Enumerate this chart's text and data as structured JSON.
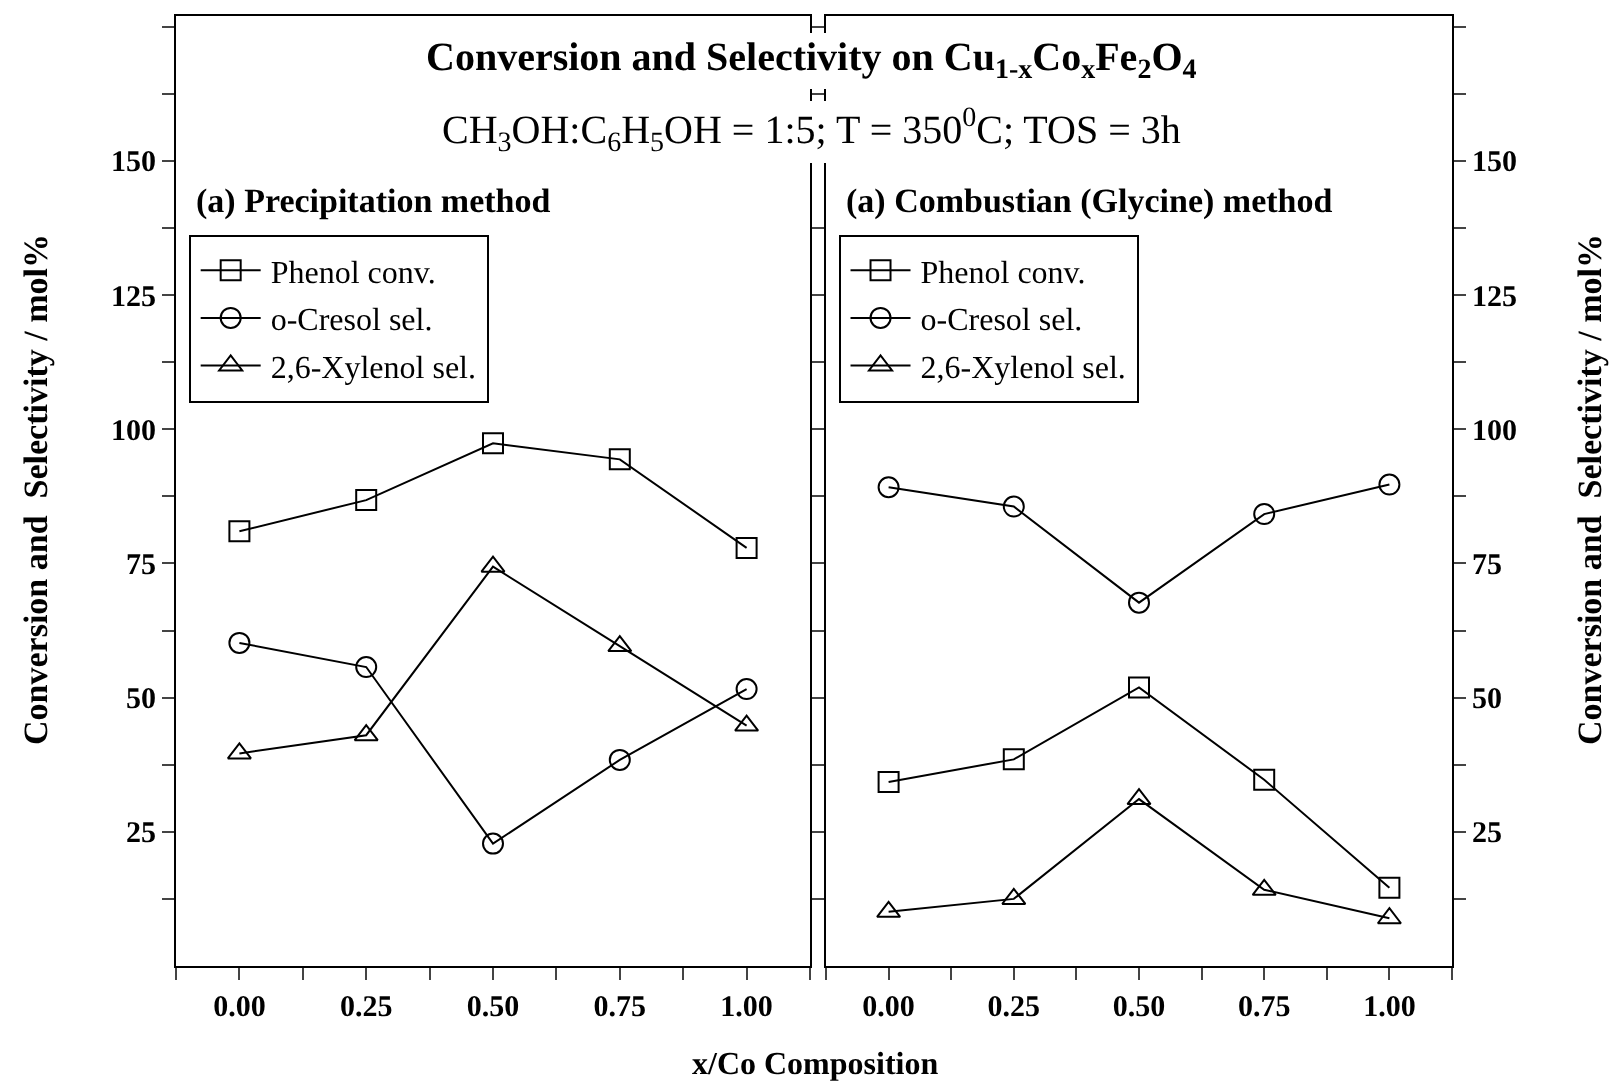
{
  "chart_data": [
    {
      "type": "line",
      "title": "Conversion and Selectivity on Cu$_{1-x}$Co$_{x}$Fe$_{2}$O$_{4}$",
      "subtitle": "CH$_{3}$OH:C$_{6}$H$_{5}$OH = 1:5; T = 350$^{0}$C; TOS = 3h",
      "xlabel": "x/Co Composition",
      "ylabel": "Conversion and  Selectivity / mol%",
      "annotations": [
        "(a) Precipitation method"
      ],
      "x": [
        0,
        0.25,
        0.5,
        0.75,
        1.0
      ],
      "xlim": [
        -0.125,
        1.125
      ],
      "xticks": [
        {
          "value": -0.125,
          "label": null
        },
        {
          "value": 0,
          "label": "0.00"
        },
        {
          "value": 0.125,
          "label": null
        },
        {
          "value": 0.25,
          "label": "0.25"
        },
        {
          "value": 0.375,
          "label": null
        },
        {
          "value": 0.5,
          "label": "0.50"
        },
        {
          "value": 0.625,
          "label": null
        },
        {
          "value": 0.75,
          "label": "0.75"
        },
        {
          "value": 0.875,
          "label": null
        },
        {
          "value": 1.0,
          "label": "1.00"
        },
        {
          "value": 1.125,
          "label": null
        }
      ],
      "ylim": [
        0,
        177
      ],
      "yticks": [
        {
          "value": 12.5,
          "label": null
        },
        25,
        {
          "value": 37.5,
          "label": null
        },
        50,
        {
          "value": 62.5,
          "label": null
        },
        75,
        {
          "value": 87.5,
          "label": null
        },
        100,
        {
          "value": 112.5,
          "label": null
        },
        125,
        {
          "value": 137.5,
          "label": null
        },
        150,
        {
          "value": 162.5,
          "label": null
        },
        {
          "value": 175,
          "label": null
        }
      ],
      "legend": "top left",
      "line_style": "solid",
      "series": [
        {
          "name": "Phenol conv.",
          "color": "#000000",
          "marker": "square",
          "values": [
            81,
            86.8,
            97.4,
            94.4,
            77.9
          ]
        },
        {
          "name": "o-Cresol sel.",
          "color": "#000000",
          "marker": "circle",
          "values": [
            60.2,
            55.7,
            22.8,
            38.4,
            51.6
          ]
        },
        {
          "name": "2,6-Xylenol sel.",
          "color": "#000000",
          "marker": "triangle",
          "values": [
            39.6,
            43,
            74.4,
            59.6,
            44.8
          ]
        }
      ]
    },
    {
      "type": "line",
      "ylabel": "Conversion and  Selectivity / mol%",
      "annotations": [
        "(a) Combustian (Glycine) method"
      ],
      "x": [
        0,
        0.25,
        0.5,
        0.75,
        1.0
      ],
      "xlim": [
        -0.125,
        1.125
      ],
      "xticks": [
        {
          "value": -0.125,
          "label": null
        },
        {
          "value": 0,
          "label": "0.00"
        },
        {
          "value": 0.125,
          "label": null
        },
        {
          "value": 0.25,
          "label": "0.25"
        },
        {
          "value": 0.375,
          "label": null
        },
        {
          "value": 0.5,
          "label": "0.50"
        },
        {
          "value": 0.625,
          "label": null
        },
        {
          "value": 0.75,
          "label": "0.75"
        },
        {
          "value": 0.875,
          "label": null
        },
        {
          "value": 1.0,
          "label": "1.00"
        },
        {
          "value": 1.125,
          "label": null
        }
      ],
      "ylim": [
        0,
        177
      ],
      "yticks": [
        {
          "value": 12.5,
          "label": null
        },
        25,
        {
          "value": 37.5,
          "label": null
        },
        50,
        {
          "value": 62.5,
          "label": null
        },
        75,
        {
          "value": 87.5,
          "label": null
        },
        100,
        {
          "value": 112.5,
          "label": null
        },
        125,
        {
          "value": 137.5,
          "label": null
        },
        150,
        {
          "value": 162.5,
          "label": null
        },
        {
          "value": 175,
          "label": null
        }
      ],
      "legend": "top left",
      "line_style": "solid",
      "series": [
        {
          "name": "Phenol conv.",
          "color": "#000000",
          "marker": "square",
          "values": [
            34.3,
            38.5,
            51.9,
            34.7,
            14.6
          ]
        },
        {
          "name": "o-Cresol sel.",
          "color": "#000000",
          "marker": "circle",
          "values": [
            89.2,
            85.6,
            67.7,
            84.2,
            89.7
          ]
        },
        {
          "name": "2,6-Xylenol sel.",
          "color": "#000000",
          "marker": "triangle",
          "values": [
            10.1,
            12.5,
            31.1,
            14.2,
            8.9
          ]
        }
      ]
    }
  ]
}
